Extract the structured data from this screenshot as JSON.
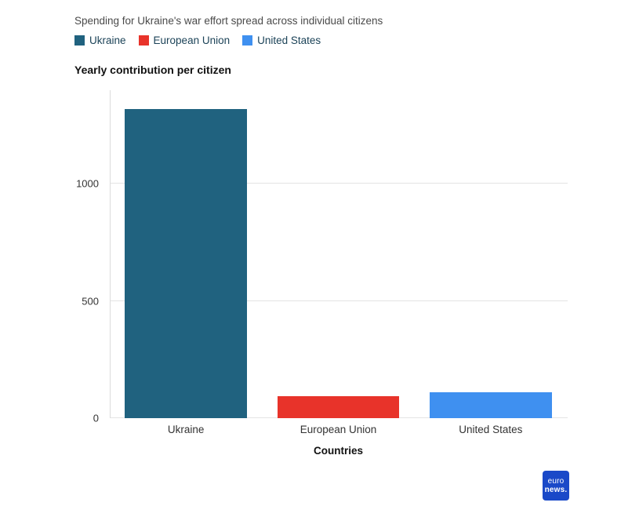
{
  "header": {
    "title": "Spending for Ukraine's war effort spread across individual citizens"
  },
  "legend": [
    {
      "label": "Ukraine",
      "color": "#20627f"
    },
    {
      "label": "European Union",
      "color": "#e8332a"
    },
    {
      "label": "United States",
      "color": "#3f90f0"
    }
  ],
  "chart_data": {
    "type": "bar",
    "title": "Yearly contribution per citizen",
    "categories": [
      "Ukraine",
      "European Union",
      "United States"
    ],
    "values": [
      1320,
      95,
      110
    ],
    "colors": [
      "#20627f",
      "#e8332a",
      "#3f90f0"
    ],
    "xlabel": "Countries",
    "ylabel": "",
    "ylim": [
      0,
      1400
    ],
    "yticks": [
      0,
      500,
      1000
    ],
    "grid": true,
    "legend_position": "top"
  },
  "logo": {
    "line1": "euro",
    "line2": "news.",
    "color": "#1a49c8"
  }
}
